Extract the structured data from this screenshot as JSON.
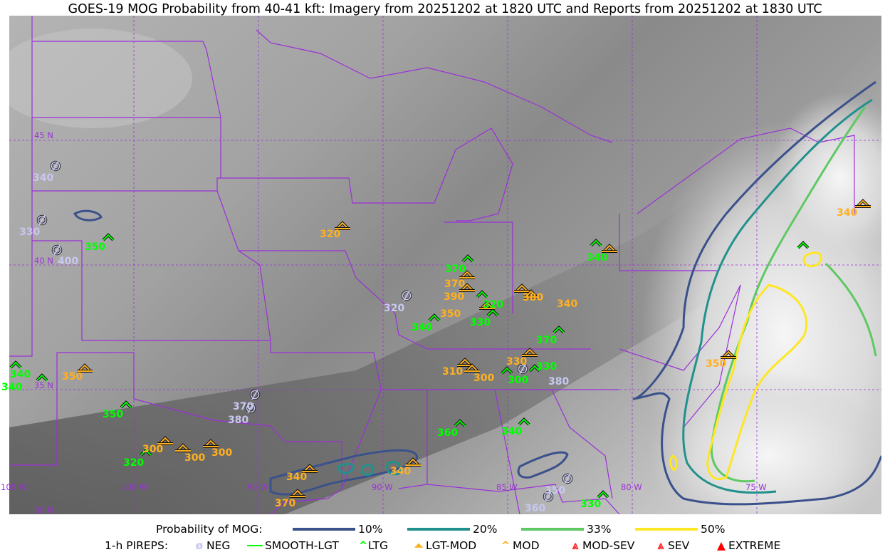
{
  "title": "GOES-19 MOG Probability from 40-41 kft: Imagery from 20251202 at 1820 UTC and Reports from 20251202 at 1830 UTC",
  "map": {
    "lat_labels": [
      "45 N",
      "40 N",
      "35 N",
      "30 N"
    ],
    "lon_labels": [
      "105 W",
      "100 W",
      "95 W",
      "90 W",
      "85 W",
      "80 W",
      "75 W"
    ],
    "colors": {
      "border": "#9b30d9",
      "grid": "#9b30d9"
    }
  },
  "legend": {
    "probability_label": "Probability of MOG:",
    "probability_levels": [
      {
        "label": "10%",
        "color": "#3b518b"
      },
      {
        "label": "20%",
        "color": "#21918c"
      },
      {
        "label": "33%",
        "color": "#5ec962"
      },
      {
        "label": "50%",
        "color": "#fde725"
      }
    ],
    "pireps_label": "1-h PIREPS:",
    "pirep_types": [
      {
        "label": "NEG",
        "icon": "neg-circle-slash-icon",
        "color": "#c8c8f0"
      },
      {
        "label": "SMOOTH-LGT",
        "icon": "line-icon",
        "color": "#00ff00"
      },
      {
        "label": "LTG",
        "icon": "caret-icon",
        "color": "#00ff00"
      },
      {
        "label": "LGT-MOD",
        "icon": "caret-bar-icon",
        "color": "#ffb020"
      },
      {
        "label": "MOD",
        "icon": "caret-icon",
        "color": "#ffb020"
      },
      {
        "label": "MOD-SEV",
        "icon": "double-caret-bar-icon",
        "color": "#ff2020"
      },
      {
        "label": "SEV",
        "icon": "double-caret-icon",
        "color": "#ff2020"
      },
      {
        "label": "EXTREME",
        "icon": "filled-triangle-icon",
        "color": "#ff0000"
      }
    ]
  },
  "pireps": [
    {
      "type": "NEG",
      "alt": "340"
    },
    {
      "type": "NEG",
      "alt": "330"
    },
    {
      "type": "NEG",
      "alt": "400"
    },
    {
      "type": "LTG",
      "alt": "350"
    },
    {
      "type": "LGT-MOD",
      "alt": "320"
    },
    {
      "type": "LTG",
      "alt": "370"
    },
    {
      "type": "LGT-MOD",
      "alt": "370"
    },
    {
      "type": "LGT-MOD",
      "alt": "390"
    },
    {
      "type": "LTG",
      "alt": "320"
    },
    {
      "type": "MOD",
      "alt": "350"
    },
    {
      "type": "LTG",
      "alt": "330"
    },
    {
      "type": "NEG",
      "alt": "320"
    },
    {
      "type": "LTG",
      "alt": "340"
    },
    {
      "type": "LGT-MOD",
      "alt": "380"
    },
    {
      "type": "MOD",
      "alt": "340"
    },
    {
      "type": "LTG",
      "alt": "370"
    },
    {
      "type": "LGT-MOD",
      "alt": "330"
    },
    {
      "type": "LGT-MOD",
      "alt": "310"
    },
    {
      "type": "LGT-MOD",
      "alt": "300"
    },
    {
      "type": "LTG",
      "alt": "300"
    },
    {
      "type": "NEG",
      "alt": "380"
    },
    {
      "type": "LTG",
      "alt": "330"
    },
    {
      "type": "LTG",
      "alt": "340"
    },
    {
      "type": "MOD",
      "alt": ""
    },
    {
      "type": "LTG",
      "alt": ""
    },
    {
      "type": "LGT-MOD",
      "alt": "340"
    },
    {
      "type": "LGT-MOD",
      "alt": "350"
    },
    {
      "type": "LTG",
      "alt": "340"
    },
    {
      "type": "LTG",
      "alt": "340"
    },
    {
      "type": "MOD",
      "alt": "350"
    },
    {
      "type": "LTG",
      "alt": "350"
    },
    {
      "type": "NEG",
      "alt": "370"
    },
    {
      "type": "NEG",
      "alt": "380"
    },
    {
      "type": "LGT-MOD",
      "alt": "300"
    },
    {
      "type": "LTG",
      "alt": "320"
    },
    {
      "type": "LGT-MOD",
      "alt": "300"
    },
    {
      "type": "MOD",
      "alt": "300"
    },
    {
      "type": "MOD",
      "alt": "340"
    },
    {
      "type": "MOD",
      "alt": "370"
    },
    {
      "type": "LGT-MOD",
      "alt": "340"
    },
    {
      "type": "LTG",
      "alt": "360"
    },
    {
      "type": "LTG",
      "alt": "340"
    },
    {
      "type": "NEG",
      "alt": "350"
    },
    {
      "type": "NEG",
      "alt": "360"
    },
    {
      "type": "LTG",
      "alt": "330"
    }
  ]
}
